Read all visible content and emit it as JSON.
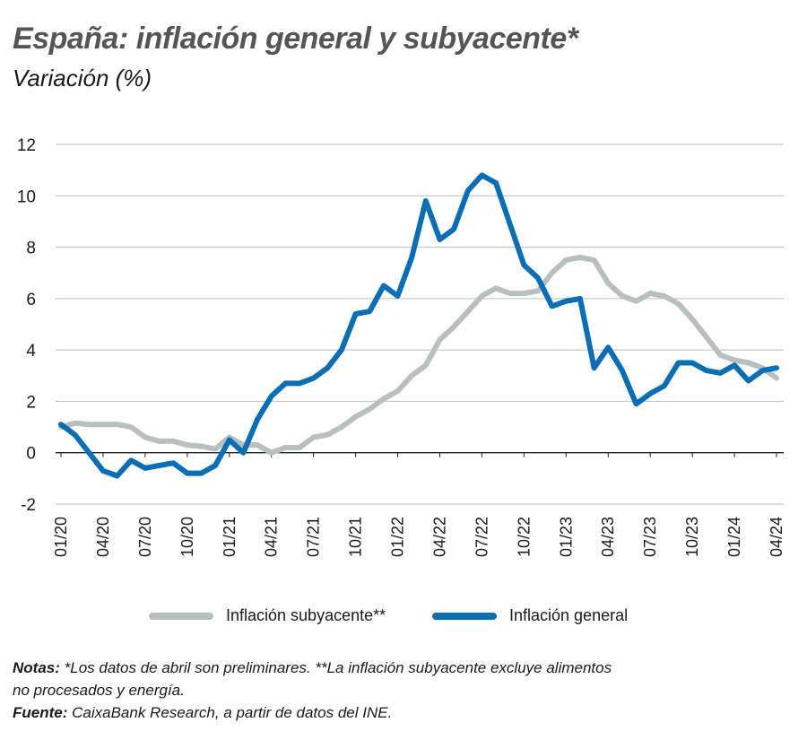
{
  "header": {
    "title": "España: inflación general y subyacente*",
    "subtitle": "Variación (%)"
  },
  "legend": {
    "items": [
      {
        "label": "Inflación subyacente**",
        "color": "#b7bfbf"
      },
      {
        "label": "Inflación general",
        "color": "#0a6eb4"
      }
    ]
  },
  "footer": {
    "notes_label": "Notas:",
    "notes_text_1": "*Los datos de abril son preliminares. **La inflación subyacente excluye alimentos",
    "notes_text_2": "no procesados y energía.",
    "source_label": "Fuente:",
    "source_text": "CaixaBank Research, a partir de datos del INE."
  },
  "chart_data": {
    "type": "line",
    "title": "España: inflación general y subyacente*",
    "ylabel": "Variación (%)",
    "ylim": [
      -2,
      12
    ],
    "yticks": [
      "12",
      "10",
      "8",
      "6",
      "4",
      "2",
      "0",
      "-2"
    ],
    "ytick_values": [
      12,
      10,
      8,
      6,
      4,
      2,
      0,
      -2
    ],
    "xticks": [
      "01/20",
      "04/20",
      "07/20",
      "10/20",
      "01/21",
      "04/21",
      "07/21",
      "10/21",
      "01/22",
      "04/22",
      "07/22",
      "10/22",
      "01/23",
      "04/23",
      "07/23",
      "10/23",
      "01/24",
      "04/24"
    ],
    "x": [
      "01/20",
      "02/20",
      "03/20",
      "04/20",
      "05/20",
      "06/20",
      "07/20",
      "08/20",
      "09/20",
      "10/20",
      "11/20",
      "12/20",
      "01/21",
      "02/21",
      "03/21",
      "04/21",
      "05/21",
      "06/21",
      "07/21",
      "08/21",
      "09/21",
      "10/21",
      "11/21",
      "12/21",
      "01/22",
      "02/22",
      "03/22",
      "04/22",
      "05/22",
      "06/22",
      "07/22",
      "08/22",
      "09/22",
      "10/22",
      "11/22",
      "12/22",
      "01/23",
      "02/23",
      "03/23",
      "04/23",
      "05/23",
      "06/23",
      "07/23",
      "08/23",
      "09/23",
      "10/23",
      "11/23",
      "12/23",
      "01/24",
      "02/24",
      "03/24",
      "04/24"
    ],
    "grid": true,
    "legend_position": "bottom",
    "series": [
      {
        "name": "Inflación subyacente**",
        "color": "#b7bfbf",
        "values": [
          1.0,
          1.15,
          1.1,
          1.1,
          1.1,
          1.0,
          0.6,
          0.45,
          0.45,
          0.3,
          0.25,
          0.15,
          0.6,
          0.3,
          0.3,
          0.0,
          0.2,
          0.2,
          0.6,
          0.7,
          1.0,
          1.4,
          1.7,
          2.1,
          2.4,
          3.0,
          3.4,
          4.4,
          4.9,
          5.5,
          6.1,
          6.4,
          6.2,
          6.2,
          6.3,
          7.0,
          7.5,
          7.6,
          7.5,
          6.6,
          6.1,
          5.9,
          6.2,
          6.1,
          5.8,
          5.2,
          4.5,
          3.8,
          3.6,
          3.5,
          3.3,
          2.9
        ]
      },
      {
        "name": "Inflación general",
        "color": "#0a6eb4",
        "values": [
          1.1,
          0.7,
          0.0,
          -0.7,
          -0.9,
          -0.3,
          -0.6,
          -0.5,
          -0.4,
          -0.8,
          -0.8,
          -0.5,
          0.5,
          0.0,
          1.3,
          2.2,
          2.7,
          2.7,
          2.9,
          3.3,
          4.0,
          5.4,
          5.5,
          6.5,
          6.1,
          7.6,
          9.8,
          8.3,
          8.7,
          10.2,
          10.8,
          10.5,
          8.9,
          7.3,
          6.8,
          5.7,
          5.9,
          6.0,
          3.3,
          4.1,
          3.2,
          1.9,
          2.3,
          2.6,
          3.5,
          3.5,
          3.2,
          3.1,
          3.4,
          2.8,
          3.2,
          3.3
        ]
      }
    ]
  }
}
